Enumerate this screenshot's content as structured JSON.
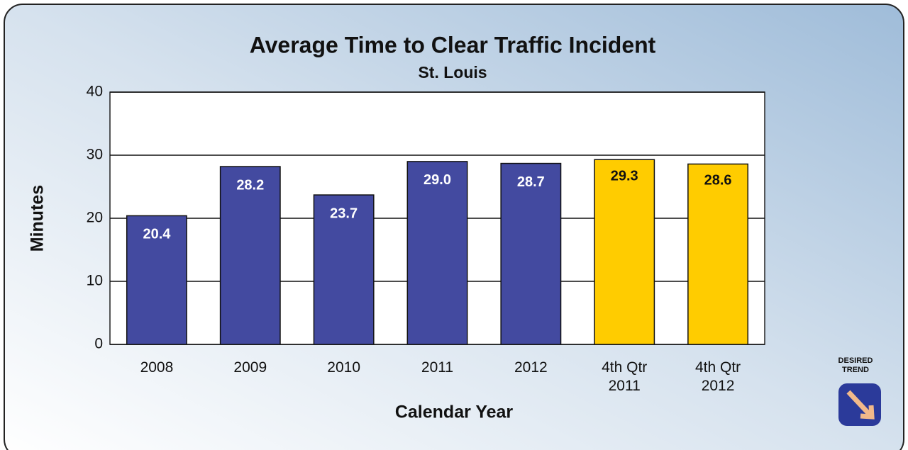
{
  "chart_data": {
    "type": "bar",
    "title": "Average Time to Clear Traffic Incident",
    "subtitle": "St. Louis",
    "x_label": "Calendar Year",
    "y_label": "Minutes",
    "categories": [
      "2008",
      "2009",
      "2010",
      "2011",
      "2012",
      "4th Qtr 2011",
      "4th Qtr 2012"
    ],
    "values": [
      20.4,
      28.2,
      23.7,
      29.0,
      28.7,
      29.3,
      28.6
    ],
    "value_labels": [
      "20.4",
      "28.2",
      "23.7",
      "29.0",
      "28.7",
      "29.3",
      "28.6"
    ],
    "colors": [
      "#434aa0",
      "#434aa0",
      "#434aa0",
      "#434aa0",
      "#434aa0",
      "#ffcc00",
      "#ffcc00"
    ],
    "ylim": [
      0,
      40
    ],
    "yticks": [
      0,
      10,
      20,
      30,
      40
    ],
    "grid": true,
    "desired_trend": "DESIRED TREND"
  }
}
